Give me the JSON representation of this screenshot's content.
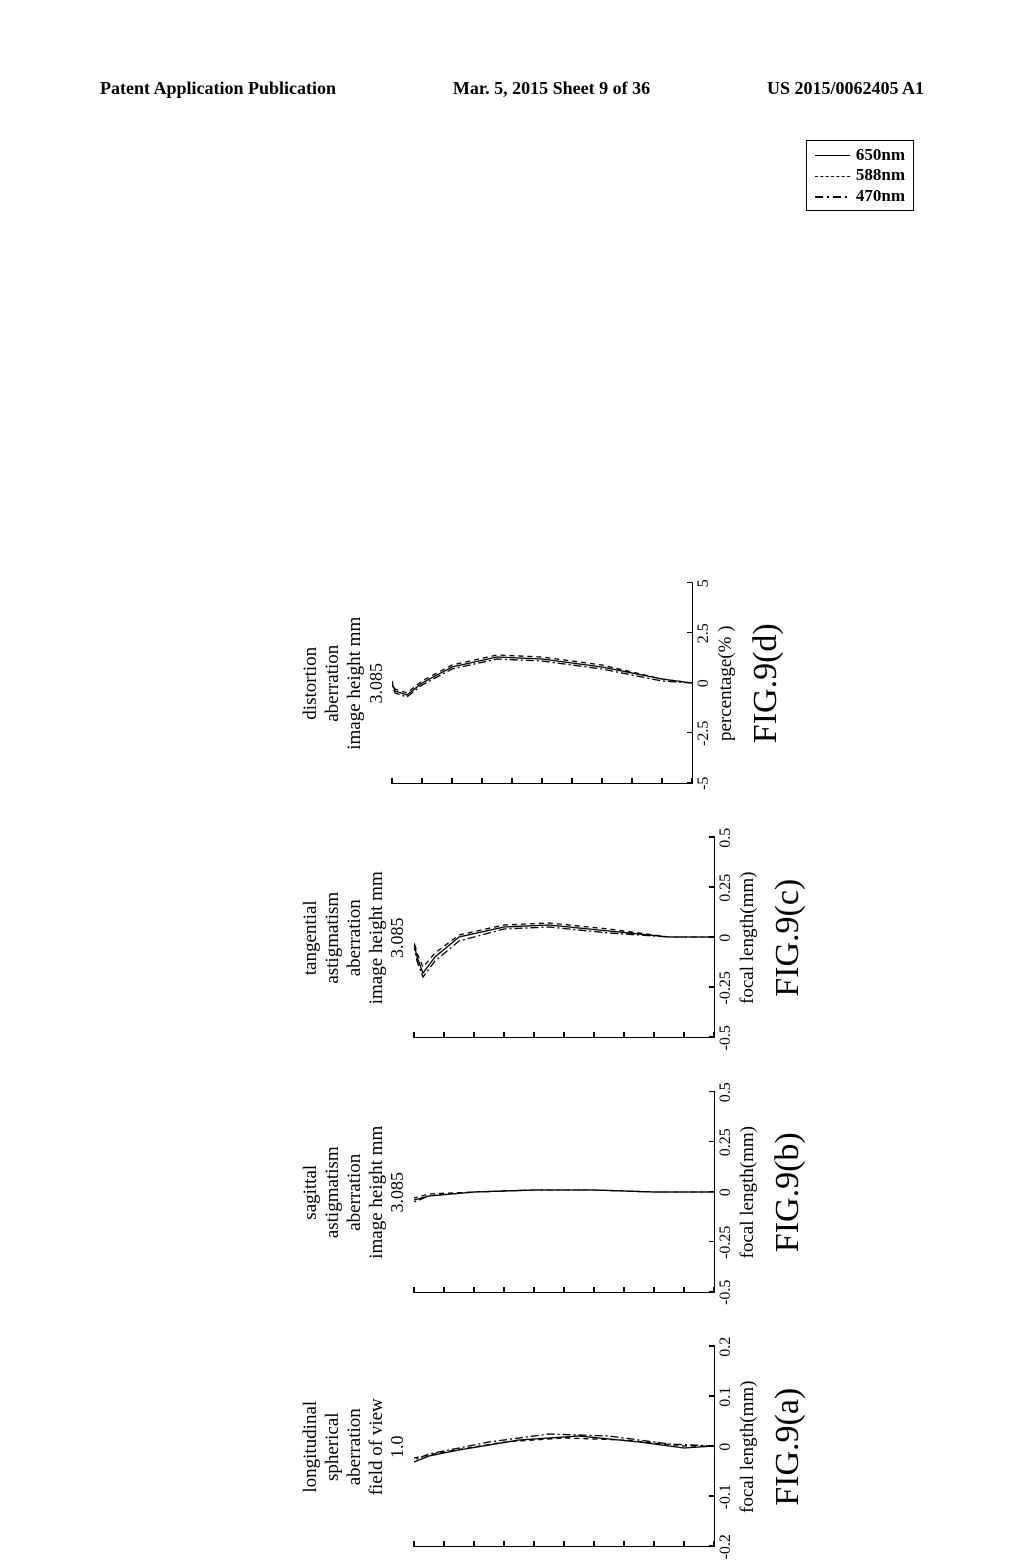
{
  "header": {
    "left": "Patent Application Publication",
    "center": "Mar. 5, 2015  Sheet 9 of 36",
    "right": "US 2015/0062405 A1"
  },
  "legend": {
    "items": [
      {
        "label": "650nm",
        "pattern": "solid"
      },
      {
        "label": "588nm",
        "pattern": "dash"
      },
      {
        "label": "470nm",
        "pattern": "dashdot"
      }
    ],
    "border_color": "#000000",
    "font_size": 17
  },
  "charts": [
    {
      "id": "a",
      "title_lines": [
        "longitudinal",
        "spherical",
        "aberration",
        "field of view"
      ],
      "y_top_value": "1.0",
      "xlim": [
        -0.2,
        0.2
      ],
      "xticks": [
        "-0.2",
        "-0.1",
        "0",
        "0.1",
        "0.2"
      ],
      "xlabel": "focal length(mm)",
      "fig_label": "FIG.9(a)",
      "series_colors": [
        "#000000",
        "#000000",
        "#000000"
      ],
      "line_styles": [
        "solid",
        "dash",
        "dashdot"
      ],
      "line_width": 1.3,
      "curves": [
        [
          [
            0.5,
            0
          ],
          [
            0.49,
            0.1
          ],
          [
            0.52,
            0.25
          ],
          [
            0.55,
            0.45
          ],
          [
            0.53,
            0.65
          ],
          [
            0.48,
            0.85
          ],
          [
            0.45,
            0.95
          ],
          [
            0.42,
            1.0
          ]
        ],
        [
          [
            0.5,
            0
          ],
          [
            0.5,
            0.1
          ],
          [
            0.53,
            0.3
          ],
          [
            0.54,
            0.5
          ],
          [
            0.52,
            0.7
          ],
          [
            0.47,
            0.9
          ],
          [
            0.44,
            1.0
          ]
        ],
        [
          [
            0.5,
            0
          ],
          [
            0.51,
            0.15
          ],
          [
            0.55,
            0.35
          ],
          [
            0.56,
            0.55
          ],
          [
            0.52,
            0.75
          ],
          [
            0.46,
            0.95
          ],
          [
            0.43,
            1.0
          ]
        ]
      ]
    },
    {
      "id": "b",
      "title_lines": [
        "sagittal",
        "astigmatism",
        "aberration",
        "image height  mm"
      ],
      "y_top_value": "3.085",
      "xlim": [
        -0.5,
        0.5
      ],
      "xticks": [
        "-0.5",
        "-0.25",
        "0",
        "0.25",
        "0.5"
      ],
      "xlabel": "focal length(mm)",
      "fig_label": "FIG.9(b)",
      "series_colors": [
        "#000000",
        "#000000",
        "#000000"
      ],
      "line_styles": [
        "solid",
        "dash",
        "dashdot"
      ],
      "line_width": 1.3,
      "curves": [
        [
          [
            0.5,
            0
          ],
          [
            0.5,
            0.2
          ],
          [
            0.51,
            0.4
          ],
          [
            0.51,
            0.6
          ],
          [
            0.5,
            0.8
          ],
          [
            0.48,
            0.95
          ],
          [
            0.46,
            1.0
          ]
        ],
        [
          [
            0.5,
            0
          ],
          [
            0.5,
            0.2
          ],
          [
            0.51,
            0.4
          ],
          [
            0.51,
            0.6
          ],
          [
            0.5,
            0.8
          ],
          [
            0.49,
            0.95
          ],
          [
            0.47,
            1.0
          ]
        ],
        [
          [
            0.5,
            0
          ],
          [
            0.5,
            0.2
          ],
          [
            0.51,
            0.4
          ],
          [
            0.51,
            0.6
          ],
          [
            0.5,
            0.8
          ],
          [
            0.48,
            0.95
          ],
          [
            0.45,
            1.0
          ]
        ]
      ]
    },
    {
      "id": "c",
      "title_lines": [
        "tangential",
        "astigmatism",
        "aberration",
        "image height  mm"
      ],
      "y_top_value": "3.085",
      "xlim": [
        -0.5,
        0.5
      ],
      "xticks": [
        "-0.5",
        "-0.25",
        "0",
        "0.25",
        "0.5"
      ],
      "xlabel": "focal length(mm)",
      "fig_label": "FIG.9(c)",
      "series_colors": [
        "#000000",
        "#000000",
        "#000000"
      ],
      "line_styles": [
        "solid",
        "dash",
        "dashdot"
      ],
      "line_width": 1.3,
      "curves": [
        [
          [
            0.5,
            0
          ],
          [
            0.5,
            0.15
          ],
          [
            0.53,
            0.35
          ],
          [
            0.56,
            0.55
          ],
          [
            0.55,
            0.7
          ],
          [
            0.5,
            0.85
          ],
          [
            0.4,
            0.93
          ],
          [
            0.32,
            0.97
          ],
          [
            0.4,
            0.99
          ],
          [
            0.47,
            1.0
          ]
        ],
        [
          [
            0.5,
            0
          ],
          [
            0.5,
            0.15
          ],
          [
            0.54,
            0.35
          ],
          [
            0.57,
            0.55
          ],
          [
            0.56,
            0.7
          ],
          [
            0.51,
            0.85
          ],
          [
            0.42,
            0.93
          ],
          [
            0.35,
            0.97
          ],
          [
            0.42,
            0.99
          ],
          [
            0.48,
            1.0
          ]
        ],
        [
          [
            0.5,
            0
          ],
          [
            0.5,
            0.15
          ],
          [
            0.52,
            0.35
          ],
          [
            0.55,
            0.55
          ],
          [
            0.54,
            0.7
          ],
          [
            0.48,
            0.85
          ],
          [
            0.38,
            0.93
          ],
          [
            0.3,
            0.97
          ],
          [
            0.38,
            0.99
          ],
          [
            0.45,
            1.0
          ]
        ]
      ]
    },
    {
      "id": "d",
      "title_lines": [
        "",
        "distortion",
        "aberration",
        "image height  mm"
      ],
      "y_top_value": "3.085",
      "xlim": [
        -5,
        5
      ],
      "xticks": [
        "-5",
        "-2.5",
        "0",
        "2.5",
        "5"
      ],
      "xlabel": "percentage(% )",
      "fig_label": "FIG.9(d)",
      "series_colors": [
        "#000000",
        "#000000",
        "#000000"
      ],
      "line_styles": [
        "solid",
        "dash",
        "dashdot"
      ],
      "line_width": 1.3,
      "curves": [
        [
          [
            0.5,
            0
          ],
          [
            0.52,
            0.1
          ],
          [
            0.58,
            0.3
          ],
          [
            0.62,
            0.5
          ],
          [
            0.63,
            0.65
          ],
          [
            0.58,
            0.8
          ],
          [
            0.5,
            0.9
          ],
          [
            0.44,
            0.95
          ],
          [
            0.46,
            0.99
          ],
          [
            0.5,
            1.0
          ]
        ],
        [
          [
            0.5,
            0
          ],
          [
            0.52,
            0.1
          ],
          [
            0.59,
            0.3
          ],
          [
            0.63,
            0.5
          ],
          [
            0.64,
            0.65
          ],
          [
            0.59,
            0.8
          ],
          [
            0.51,
            0.9
          ],
          [
            0.45,
            0.95
          ],
          [
            0.47,
            0.99
          ],
          [
            0.51,
            1.0
          ]
        ],
        [
          [
            0.5,
            0
          ],
          [
            0.51,
            0.1
          ],
          [
            0.57,
            0.3
          ],
          [
            0.61,
            0.5
          ],
          [
            0.62,
            0.65
          ],
          [
            0.57,
            0.8
          ],
          [
            0.49,
            0.9
          ],
          [
            0.43,
            0.95
          ],
          [
            0.45,
            0.99
          ],
          [
            0.49,
            1.0
          ]
        ]
      ]
    }
  ],
  "styling": {
    "background_color": "#ffffff",
    "text_color": "#000000",
    "axis_line_width": 1.5,
    "tick_length": 6,
    "title_fontsize": 19,
    "fig_label_fontsize": 34,
    "xlabel_fontsize": 19,
    "tick_fontsize": 16
  }
}
